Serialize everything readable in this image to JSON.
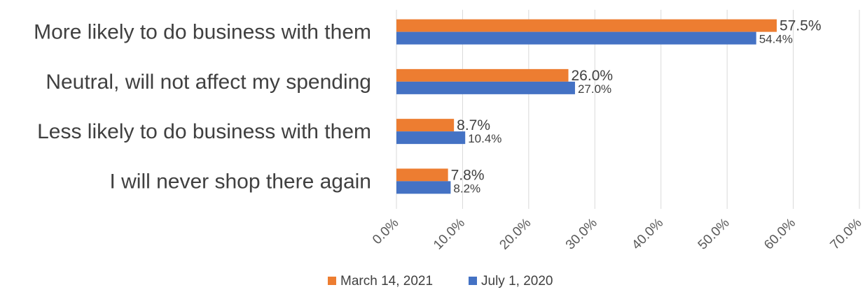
{
  "chart_data": {
    "type": "bar",
    "orientation": "horizontal",
    "categories": [
      "More likely to do business with them",
      "Neutral, will not affect my spending",
      "Less likely to do business with them",
      "I will never shop there again"
    ],
    "series": [
      {
        "name": "March 14, 2021",
        "color": "#ed7d31",
        "values": [
          57.5,
          26.0,
          8.7,
          7.8
        ]
      },
      {
        "name": "July 1, 2020",
        "color": "#4472c4",
        "values": [
          54.4,
          27.0,
          10.4,
          8.2
        ]
      }
    ],
    "xlim": [
      0,
      70
    ],
    "xticks": [
      0,
      10,
      20,
      30,
      40,
      50,
      60,
      70
    ],
    "xtick_labels": [
      "0.0%",
      "10.0%",
      "20.0%",
      "30.0%",
      "40.0%",
      "50.0%",
      "60.0%",
      "70.0%"
    ],
    "data_labels": [
      [
        "57.5%",
        "26.0%",
        "8.7%",
        "7.8%"
      ],
      [
        "54.4%",
        "27.0%",
        "10.4%",
        "8.2%"
      ]
    ],
    "grid": true,
    "legend": "bottom"
  }
}
